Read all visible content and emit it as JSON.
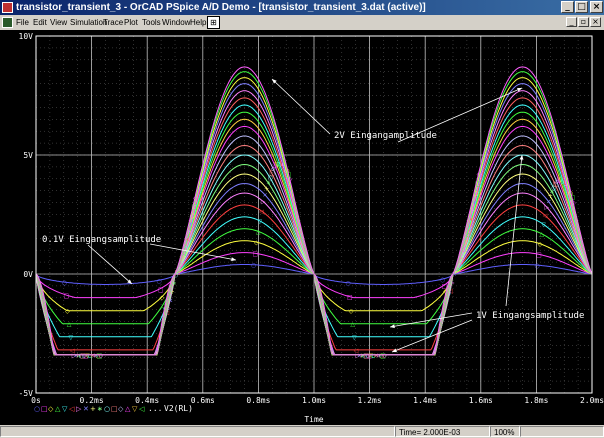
{
  "window": {
    "title": "transistor_transient_3 - OrCAD PSpice A/D Demo - [transistor_transient_3.dat (active)]",
    "minimize_glyph": "_",
    "maximize_glyph": "□",
    "close_glyph": "×",
    "mdi_minimize_glyph": "_",
    "mdi_restore_glyph": "▫",
    "mdi_close_glyph": "×"
  },
  "menu": [
    "File",
    "Edit",
    "View",
    "Simulation",
    "Trace",
    "Plot",
    "Tools",
    "Window",
    "Help"
  ],
  "zoom_icon": "zoom-icon",
  "chart_data": {
    "type": "line",
    "xlabel": "Time",
    "x_unit": "ms",
    "xlim": [
      0,
      2.0
    ],
    "ylim": [
      -5,
      10
    ],
    "x_ticks": [
      "0s",
      "0.2ms",
      "0.4ms",
      "0.6ms",
      "0.8ms",
      "1.0ms",
      "1.2ms",
      "1.4ms",
      "1.6ms",
      "1.8ms",
      "2.0ms"
    ],
    "y_ticks": [
      "10V",
      "5V",
      "0V",
      "-5V"
    ],
    "grid": true,
    "signal_period_ms": 1.0,
    "zero_crossings_ms": [
      0,
      0.5,
      1.0,
      1.5,
      2.0
    ],
    "series_peak_volts": [
      0.4,
      0.9,
      1.4,
      1.9,
      2.4,
      2.9,
      3.4,
      3.8,
      4.2,
      4.6,
      5.0,
      5.4,
      5.8,
      6.2,
      6.5,
      6.8,
      7.1,
      7.4,
      7.7,
      8.0,
      8.25,
      8.5,
      8.7
    ],
    "series_colors": [
      "#6060ff",
      "#ff40ff",
      "#ffff40",
      "#40ff40",
      "#40ffff",
      "#ff4040",
      "#ff80ff",
      "#8080ff",
      "#ffff80",
      "#80ff80",
      "#80ffff",
      "#ff8080",
      "#c0c0ff",
      "#ff40ff",
      "#ffd040",
      "#40ff40",
      "#40ffff",
      "#ff6060",
      "#ff80ff",
      "#8080ff",
      "#ffff40",
      "#40ff40",
      "#ff60ff"
    ],
    "negative_floor_volts": -3.4,
    "legend_label": "V2(RL)",
    "legend_ellipsis": "...",
    "legend_marker_colors": [
      "#6060ff",
      "#ff40ff",
      "#ffff40",
      "#40ff40",
      "#40ffff",
      "#ff4040",
      "#ff80ff",
      "#8080ff",
      "#ffff80",
      "#80ff80",
      "#80ffff",
      "#ff8080",
      "#c0c0ff",
      "#ff40ff",
      "#ffd040",
      "#40ff40"
    ],
    "annotations": [
      {
        "text": "2V Eingangamplitude",
        "target_series": 22
      },
      {
        "text": "0.1V Eingangsamplitude",
        "target_series": 0
      },
      {
        "text": "1V Eingangsamplitude",
        "target_series": 10
      }
    ]
  },
  "status": {
    "time": "Time= 2.000E-03",
    "zoom": "100%"
  }
}
